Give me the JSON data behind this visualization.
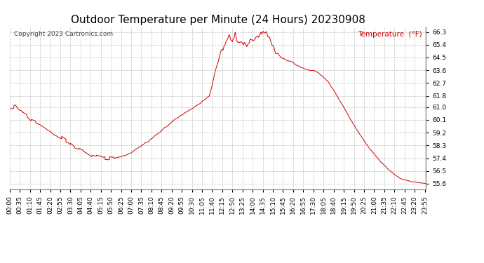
{
  "title": "Outdoor Temperature per Minute (24 Hours) 20230908",
  "copyright_text": "Copyright 2023 Cartronics.com",
  "legend_label": "Temperature  (°F)",
  "line_color": "#cc0000",
  "background_color": "#ffffff",
  "grid_color": "#bbbbbb",
  "yticks": [
    55.6,
    56.5,
    57.4,
    58.3,
    59.2,
    60.1,
    61.0,
    61.8,
    62.7,
    63.6,
    64.5,
    65.4,
    66.3
  ],
  "ylim": [
    55.2,
    66.7
  ],
  "title_fontsize": 11,
  "tick_fontsize": 6.5,
  "copyright_fontsize": 6.5,
  "legend_fontsize": 7.5,
  "xtick_labels": [
    "00:00",
    "00:35",
    "01:10",
    "01:45",
    "02:20",
    "02:55",
    "03:30",
    "04:05",
    "04:40",
    "05:15",
    "05:50",
    "06:25",
    "07:00",
    "07:35",
    "08:10",
    "08:45",
    "09:20",
    "09:55",
    "10:30",
    "11:05",
    "11:40",
    "12:15",
    "12:50",
    "13:25",
    "14:00",
    "14:35",
    "15:10",
    "15:45",
    "16:20",
    "16:55",
    "17:30",
    "18:05",
    "18:40",
    "19:15",
    "19:50",
    "20:25",
    "21:00",
    "21:35",
    "22:10",
    "22:45",
    "23:20",
    "23:55"
  ]
}
